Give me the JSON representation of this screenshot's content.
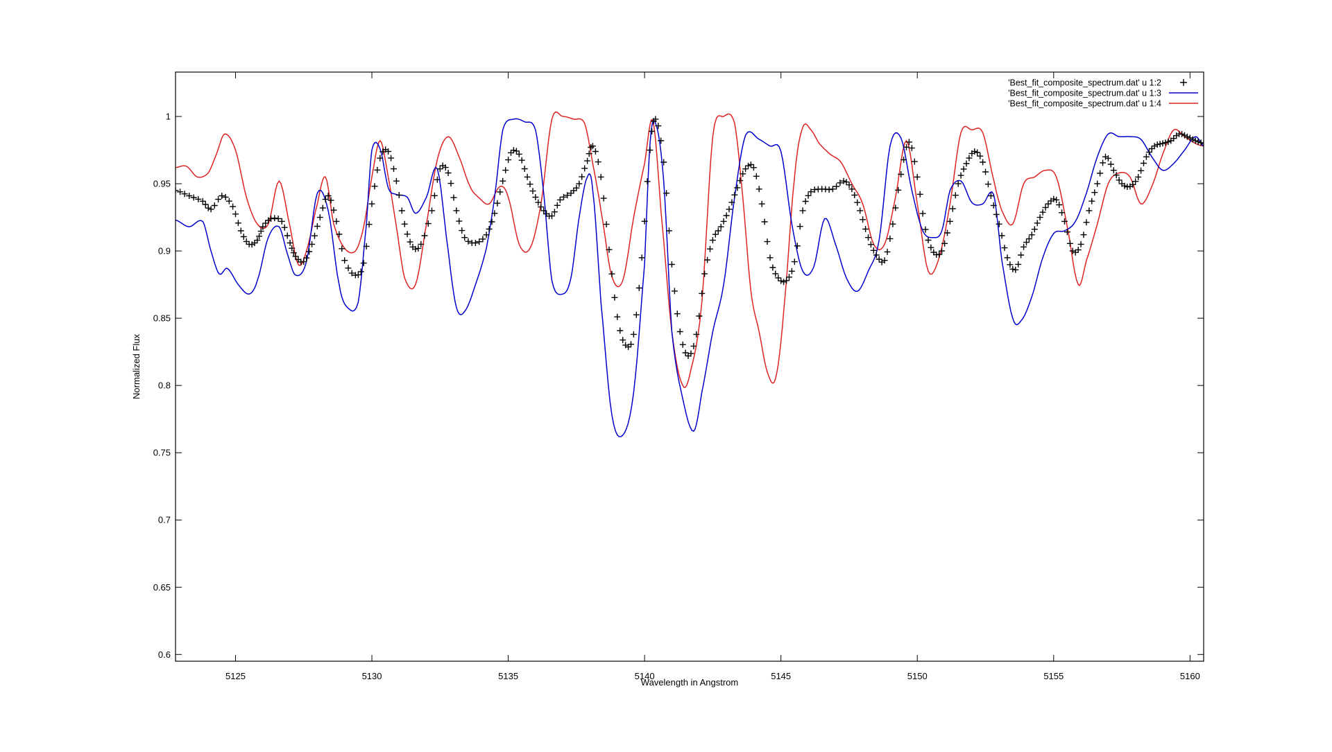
{
  "chart_data": {
    "type": "line",
    "xlabel": "Wavelength in Angstrom",
    "ylabel": "Normalized Flux",
    "xlim": [
      5122.8,
      5160.5
    ],
    "ylim": [
      0.595,
      1.033
    ],
    "xticks": [
      5125,
      5130,
      5135,
      5140,
      5145,
      5150,
      5155,
      5160
    ],
    "yticks": [
      0.6,
      0.65,
      0.7,
      0.75,
      0.8,
      0.85,
      0.9,
      0.95,
      1
    ],
    "ytick_labels": [
      "0.6",
      "0.65",
      "0.7",
      "0.75",
      "0.8",
      "0.85",
      "0.9",
      "0.95",
      "1"
    ],
    "legend_position": "top-right",
    "grid": false,
    "series": [
      {
        "name": "'Best_fit_composite_spectrum.dat' u 1:2",
        "style": "points",
        "marker": "+",
        "color": "#000000",
        "x": [
          5122.8,
          5123.3,
          5123.8,
          5124.1,
          5124.5,
          5124.9,
          5125.2,
          5125.5,
          5125.8,
          5126.0,
          5126.3,
          5126.7,
          5127.0,
          5127.2,
          5127.5,
          5127.8,
          5128.1,
          5128.4,
          5128.7,
          5129.0,
          5129.4,
          5129.7,
          5130.0,
          5130.3,
          5130.6,
          5130.9,
          5131.2,
          5131.5,
          5131.8,
          5132.2,
          5132.5,
          5132.8,
          5133.1,
          5133.4,
          5133.8,
          5134.2,
          5134.5,
          5134.8,
          5135.1,
          5135.4,
          5135.7,
          5136.0,
          5136.3,
          5136.6,
          5136.9,
          5137.3,
          5137.6,
          5137.9,
          5138.1,
          5138.4,
          5138.7,
          5139.0,
          5139.3,
          5139.6,
          5139.9,
          5140.2,
          5140.4,
          5140.7,
          5141.0,
          5141.3,
          5141.6,
          5141.9,
          5142.2,
          5142.5,
          5142.8,
          5143.1,
          5143.4,
          5143.7,
          5144.0,
          5144.3,
          5144.6,
          5144.9,
          5145.2,
          5145.5,
          5145.8,
          5146.1,
          5146.5,
          5146.9,
          5147.3,
          5147.6,
          5147.9,
          5148.2,
          5148.5,
          5148.8,
          5149.1,
          5149.4,
          5149.7,
          5150.0,
          5150.3,
          5150.6,
          5150.9,
          5151.2,
          5151.5,
          5151.8,
          5152.1,
          5152.4,
          5152.7,
          5153.0,
          5153.3,
          5153.6,
          5153.9,
          5154.2,
          5154.5,
          5154.8,
          5155.1,
          5155.4,
          5155.7,
          5156.0,
          5156.3,
          5156.6,
          5156.9,
          5157.2,
          5157.5,
          5157.8,
          5158.1,
          5158.4,
          5158.7,
          5159.0,
          5159.3,
          5159.6,
          5159.9,
          5160.2,
          5160.5
        ],
        "y": [
          0.945,
          0.941,
          0.937,
          0.931,
          0.941,
          0.933,
          0.915,
          0.905,
          0.908,
          0.918,
          0.924,
          0.922,
          0.906,
          0.896,
          0.892,
          0.905,
          0.925,
          0.941,
          0.922,
          0.893,
          0.882,
          0.891,
          0.935,
          0.969,
          0.974,
          0.952,
          0.92,
          0.903,
          0.905,
          0.93,
          0.961,
          0.958,
          0.93,
          0.91,
          0.906,
          0.912,
          0.928,
          0.952,
          0.973,
          0.972,
          0.955,
          0.94,
          0.93,
          0.926,
          0.938,
          0.943,
          0.95,
          0.967,
          0.978,
          0.955,
          0.901,
          0.851,
          0.83,
          0.838,
          0.895,
          0.975,
          0.998,
          0.966,
          0.89,
          0.84,
          0.822,
          0.838,
          0.883,
          0.908,
          0.918,
          0.931,
          0.947,
          0.961,
          0.962,
          0.935,
          0.895,
          0.88,
          0.878,
          0.892,
          0.93,
          0.944,
          0.946,
          0.946,
          0.952,
          0.946,
          0.93,
          0.91,
          0.897,
          0.893,
          0.92,
          0.957,
          0.981,
          0.955,
          0.916,
          0.899,
          0.9,
          0.922,
          0.95,
          0.965,
          0.974,
          0.966,
          0.941,
          0.92,
          0.895,
          0.886,
          0.903,
          0.912,
          0.925,
          0.935,
          0.938,
          0.922,
          0.9,
          0.905,
          0.93,
          0.95,
          0.97,
          0.96,
          0.95,
          0.948,
          0.955,
          0.97,
          0.978,
          0.98,
          0.982,
          0.987,
          0.985,
          0.982,
          0.98
        ]
      },
      {
        "name": "'Best_fit_composite_spectrum.dat' u 1:3",
        "style": "line",
        "color": "#0000cc",
        "x": [
          5122.8,
          5123.3,
          5123.8,
          5124.1,
          5124.4,
          5124.7,
          5125.1,
          5125.5,
          5125.8,
          5126.2,
          5126.6,
          5126.9,
          5127.2,
          5127.6,
          5128.0,
          5128.4,
          5128.8,
          5129.1,
          5129.5,
          5129.8,
          5130.0,
          5130.3,
          5130.6,
          5130.9,
          5131.3,
          5131.6,
          5132.0,
          5132.4,
          5132.8,
          5133.1,
          5133.4,
          5133.8,
          5134.2,
          5134.5,
          5134.8,
          5135.2,
          5135.6,
          5136.0,
          5136.3,
          5136.6,
          5137.0,
          5137.3,
          5137.6,
          5137.9,
          5138.1,
          5138.4,
          5138.8,
          5139.2,
          5139.6,
          5140.0,
          5140.2,
          5140.4,
          5140.7,
          5141.0,
          5141.4,
          5141.8,
          5142.1,
          5142.5,
          5142.9,
          5143.3,
          5143.7,
          5144.2,
          5144.6,
          5145.0,
          5145.4,
          5145.8,
          5146.2,
          5146.6,
          5147.0,
          5147.4,
          5147.8,
          5148.2,
          5148.6,
          5149.0,
          5149.4,
          5149.8,
          5150.2,
          5150.6,
          5150.9,
          5151.2,
          5151.6,
          5152.0,
          5152.4,
          5152.8,
          5153.1,
          5153.5,
          5153.8,
          5154.2,
          5154.6,
          5155.0,
          5155.4,
          5155.8,
          5156.2,
          5156.6,
          5157.0,
          5157.4,
          5157.8,
          5158.2,
          5158.6,
          5159.0,
          5159.4,
          5159.8,
          5160.2,
          5160.5
        ],
        "y": [
          0.923,
          0.918,
          0.922,
          0.9,
          0.883,
          0.887,
          0.875,
          0.868,
          0.878,
          0.91,
          0.918,
          0.898,
          0.882,
          0.892,
          0.943,
          0.93,
          0.875,
          0.858,
          0.862,
          0.92,
          0.975,
          0.976,
          0.947,
          0.942,
          0.94,
          0.928,
          0.94,
          0.961,
          0.9,
          0.858,
          0.855,
          0.875,
          0.902,
          0.94,
          0.99,
          0.998,
          0.996,
          0.99,
          0.943,
          0.878,
          0.868,
          0.88,
          0.925,
          0.955,
          0.945,
          0.862,
          0.778,
          0.763,
          0.795,
          0.89,
          0.98,
          0.995,
          0.952,
          0.84,
          0.79,
          0.766,
          0.795,
          0.84,
          0.875,
          0.94,
          0.986,
          0.983,
          0.978,
          0.974,
          0.92,
          0.885,
          0.888,
          0.924,
          0.905,
          0.88,
          0.87,
          0.885,
          0.908,
          0.978,
          0.984,
          0.945,
          0.915,
          0.91,
          0.915,
          0.945,
          0.952,
          0.936,
          0.935,
          0.942,
          0.893,
          0.85,
          0.848,
          0.866,
          0.895,
          0.913,
          0.915,
          0.922,
          0.943,
          0.97,
          0.987,
          0.985,
          0.985,
          0.983,
          0.97,
          0.96,
          0.965,
          0.975,
          0.985,
          0.978
        ]
      },
      {
        "name": "'Best_fit_composite_spectrum.dat' u 1:4",
        "style": "line",
        "color": "#dd2222",
        "x": [
          5122.8,
          5123.2,
          5123.6,
          5124.0,
          5124.3,
          5124.6,
          5125.0,
          5125.4,
          5125.8,
          5126.2,
          5126.6,
          5127.0,
          5127.3,
          5127.6,
          5128.0,
          5128.3,
          5128.6,
          5129.0,
          5129.4,
          5129.7,
          5130.0,
          5130.3,
          5130.6,
          5130.9,
          5131.2,
          5131.6,
          5132.0,
          5132.4,
          5132.8,
          5133.2,
          5133.6,
          5133.9,
          5134.3,
          5134.7,
          5135.0,
          5135.4,
          5135.8,
          5136.2,
          5136.6,
          5137.0,
          5137.4,
          5137.8,
          5138.1,
          5138.4,
          5138.8,
          5139.2,
          5139.6,
          5140.0,
          5140.3,
          5140.6,
          5141.0,
          5141.4,
          5141.7,
          5142.1,
          5142.5,
          5142.9,
          5143.3,
          5143.6,
          5143.9,
          5144.2,
          5144.5,
          5144.8,
          5145.1,
          5145.5,
          5145.8,
          5146.1,
          5146.4,
          5146.8,
          5147.2,
          5147.6,
          5148.0,
          5148.4,
          5148.8,
          5149.2,
          5149.6,
          5150.0,
          5150.4,
          5150.8,
          5151.2,
          5151.6,
          5152.0,
          5152.4,
          5152.8,
          5153.1,
          5153.5,
          5153.9,
          5154.3,
          5154.7,
          5155.1,
          5155.5,
          5155.9,
          5156.2,
          5156.6,
          5157.0,
          5157.4,
          5157.8,
          5158.2,
          5158.6,
          5159.0,
          5159.4,
          5159.8,
          5160.2,
          5160.5
        ],
        "y": [
          0.962,
          0.963,
          0.955,
          0.958,
          0.972,
          0.987,
          0.975,
          0.94,
          0.92,
          0.92,
          0.952,
          0.918,
          0.89,
          0.9,
          0.935,
          0.955,
          0.92,
          0.902,
          0.9,
          0.918,
          0.955,
          0.982,
          0.955,
          0.918,
          0.88,
          0.875,
          0.92,
          0.968,
          0.985,
          0.97,
          0.948,
          0.94,
          0.935,
          0.948,
          0.94,
          0.905,
          0.902,
          0.935,
          0.998,
          1.0,
          0.998,
          0.995,
          0.965,
          0.93,
          0.881,
          0.878,
          0.925,
          0.965,
          0.997,
          0.93,
          0.84,
          0.8,
          0.812,
          0.862,
          0.985,
          1.0,
          0.995,
          0.94,
          0.87,
          0.84,
          0.81,
          0.805,
          0.855,
          0.955,
          0.992,
          0.99,
          0.98,
          0.972,
          0.966,
          0.95,
          0.935,
          0.905,
          0.905,
          0.94,
          0.982,
          0.935,
          0.885,
          0.895,
          0.935,
          0.988,
          0.99,
          0.988,
          0.953,
          0.93,
          0.92,
          0.95,
          0.955,
          0.96,
          0.955,
          0.918,
          0.875,
          0.893,
          0.92,
          0.95,
          0.958,
          0.955,
          0.935,
          0.948,
          0.972,
          0.99,
          0.985,
          0.98,
          0.978
        ]
      }
    ]
  }
}
